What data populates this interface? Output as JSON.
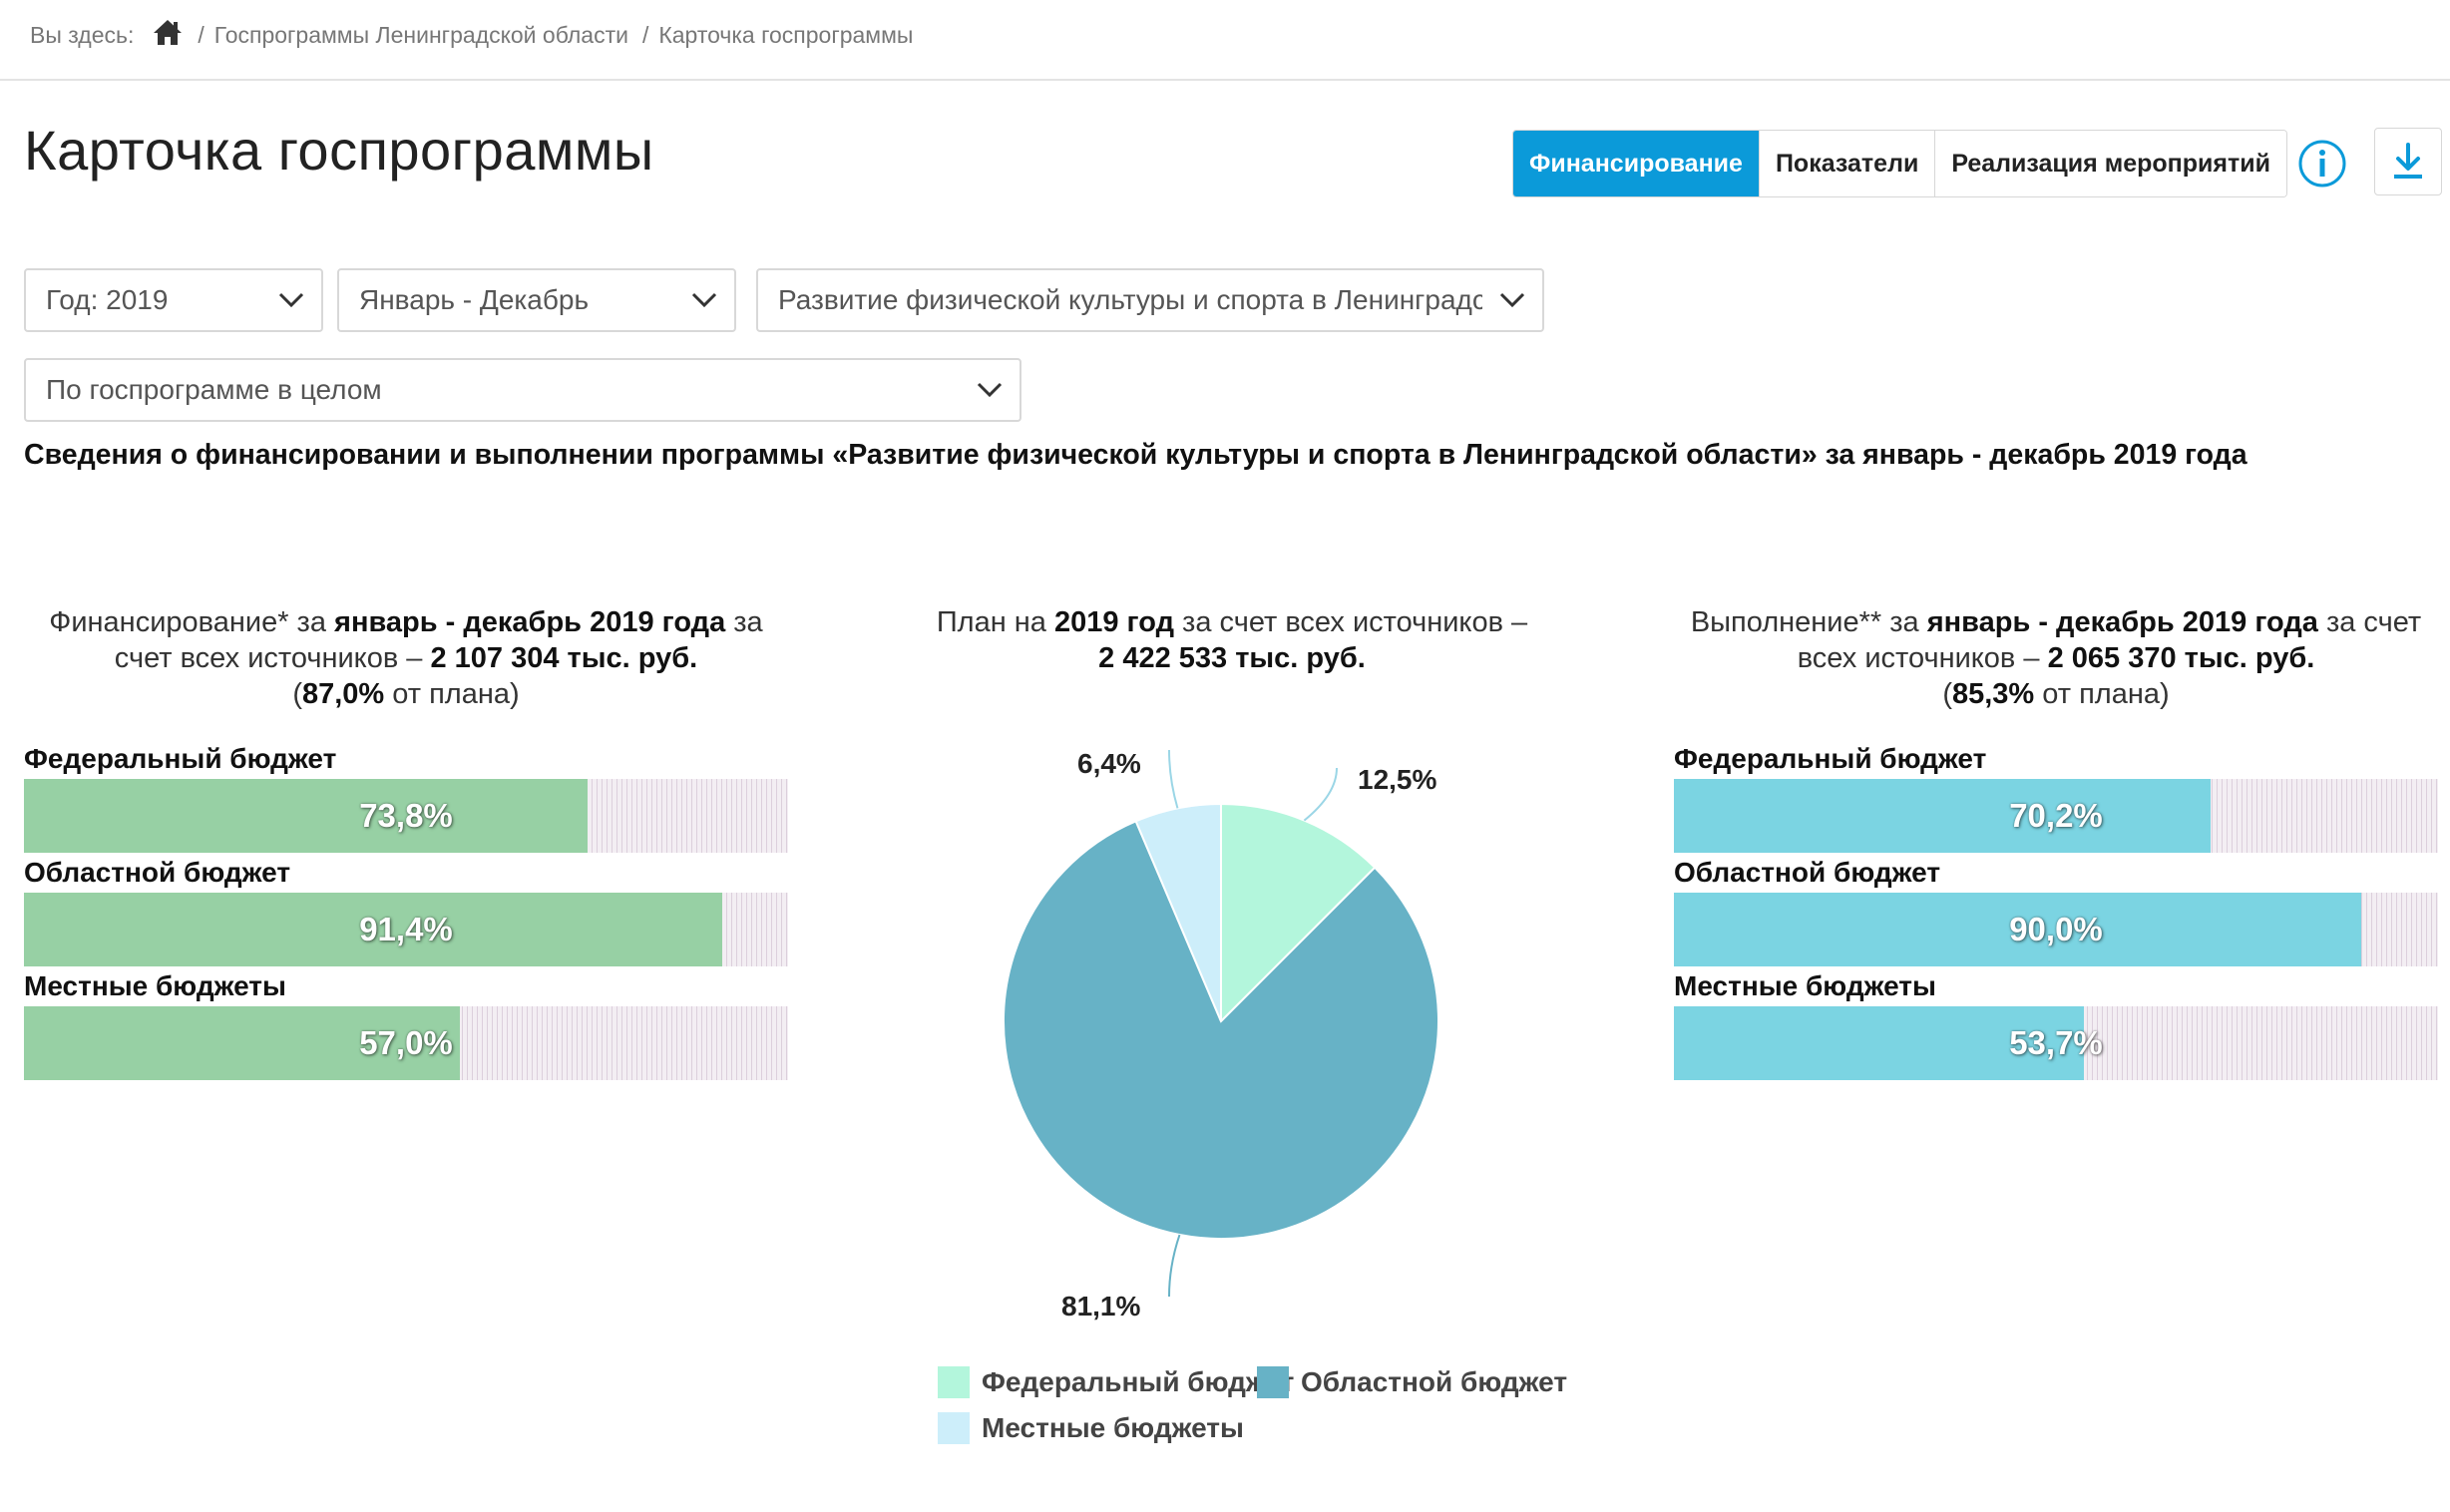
{
  "breadcrumb": {
    "prefix": "Вы здесь:",
    "items": [
      "Госпрограммы Ленинградской области",
      "Карточка госпрограммы"
    ]
  },
  "page_title": "Карточка госпрограммы",
  "tabs": [
    {
      "label": "Финансирование",
      "active": true
    },
    {
      "label": "Показатели",
      "active": false
    },
    {
      "label": "Реализация мероприятий",
      "active": false
    }
  ],
  "icons": {
    "home": "home-icon",
    "info": "info-icon",
    "download": "download-icon",
    "chevron": "chevron-down-icon"
  },
  "filters": {
    "year": "Год: 2019",
    "period": "Январь - Декабрь",
    "program": "Развитие физической культуры и спорта в Ленинградской области",
    "scope": "По госпрограмме в целом"
  },
  "subtitle": "Сведения о финансировании и выполнении программы «Развитие физической культуры и спорта в Ленинградской области» за январь - декабрь 2019 года",
  "colors": {
    "accent": "#0b9ad9",
    "financing_bar": "#97d0a4",
    "execution_bar": "#7bd4e2",
    "pie_federal": "#b3f6dc",
    "pie_regional": "#67b2c6",
    "pie_local": "#cdeefa"
  },
  "financing": {
    "head": {
      "l1a": "Финансирование* за ",
      "l1b": "январь - декабрь 2019 года",
      "l1c": " за",
      "l2a": "счет всех источников – ",
      "l2b": "2 107 304 тыс. руб.",
      "l3a": "(",
      "l3b": "87,0%",
      "l3c": " от плана)"
    },
    "bars": [
      {
        "label": "Федеральный бюджет",
        "value": 73.8,
        "text": "73,8%"
      },
      {
        "label": "Областной бюджет",
        "value": 91.4,
        "text": "91,4%"
      },
      {
        "label": "Местные бюджеты",
        "value": 57.0,
        "text": "57,0%"
      }
    ]
  },
  "plan": {
    "head": {
      "l1a": "План на ",
      "l1b": "2019 год",
      "l1c": " за счет всех источников –",
      "l2": "2 422 533 тыс. руб."
    }
  },
  "execution": {
    "head": {
      "l1a": "Выполнение** за ",
      "l1b": "январь - декабрь 2019 года",
      "l1c": " за счет",
      "l2a": "всех источников – ",
      "l2b": "2 065 370 тыс. руб.",
      "l3a": "(",
      "l3b": "85,3%",
      "l3c": " от плана)"
    },
    "bars": [
      {
        "label": "Федеральный бюджет",
        "value": 70.2,
        "text": "70,2%"
      },
      {
        "label": "Областной бюджет",
        "value": 90.0,
        "text": "90,0%"
      },
      {
        "label": "Местные бюджеты",
        "value": 53.7,
        "text": "53,7%"
      }
    ]
  },
  "chart_data": {
    "type": "pie",
    "slices": [
      {
        "name": "Федеральный бюджет",
        "value": 12.5,
        "label": "12,5%"
      },
      {
        "name": "Областной бюджет",
        "value": 81.1,
        "label": "81,1%"
      },
      {
        "name": "Местные бюджеты",
        "value": 6.4,
        "label": "6,4%"
      }
    ],
    "legend": [
      "Федеральный бюджет",
      "Областной бюджет",
      "Местные бюджеты"
    ],
    "legend_position": "bottom"
  }
}
